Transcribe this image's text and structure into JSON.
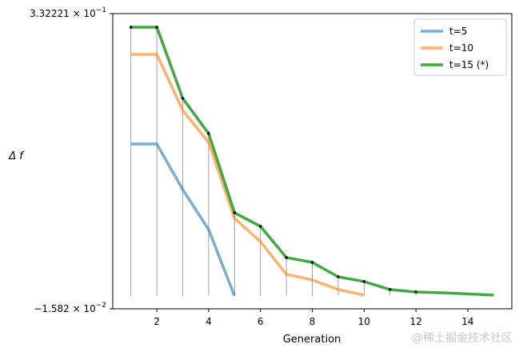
{
  "chart_data": {
    "type": "line",
    "title": "",
    "xlabel": "Generation",
    "ylabel": "Δ f",
    "xlim": [
      0.3,
      15.7
    ],
    "ylim": [
      -0.01582,
      0.332221
    ],
    "xticks": [
      2,
      4,
      6,
      8,
      10,
      12,
      14
    ],
    "yticks": [
      {
        "value": 0.332221,
        "mantissa": "3.32221",
        "base": "10",
        "exp": "−1"
      },
      {
        "value": -0.01582,
        "mantissa": "−1.582",
        "base": "10",
        "exp": "−2"
      }
    ],
    "grid": false,
    "legend_position": "top-right",
    "series": [
      {
        "name": "t=5",
        "color": "#1f77b4",
        "x": [
          1,
          2,
          3,
          4,
          5
        ],
        "y": [
          0.1785,
          0.1785,
          0.1248,
          0.0776,
          -0.0007
        ]
      },
      {
        "name": "t=10",
        "color": "#ff7f0e",
        "x": [
          1,
          2,
          3,
          4,
          5,
          6,
          7,
          8,
          9,
          10
        ],
        "y": [
          0.2841,
          0.2841,
          0.2181,
          0.1804,
          0.0908,
          0.0634,
          0.0248,
          0.0182,
          0.0069,
          0.0003
        ]
      },
      {
        "name": "t=15 (*)",
        "color": "#2ca02c",
        "x": [
          1,
          2,
          3,
          4,
          5,
          6,
          7,
          8,
          9,
          10,
          11,
          12,
          13,
          14,
          15
        ],
        "y": [
          0.3162,
          0.3162,
          0.2323,
          0.1908,
          0.0974,
          0.0814,
          0.0446,
          0.0389,
          0.0219,
          0.0163,
          0.0069,
          0.004,
          0.0031,
          0.0017,
          0.0003
        ]
      }
    ],
    "stems": {
      "x": [
        1,
        2,
        3,
        4,
        5,
        6,
        7,
        8,
        9,
        10,
        11,
        12
      ],
      "baseline": 0
    }
  },
  "watermark": "@稀土掘金技术社区"
}
